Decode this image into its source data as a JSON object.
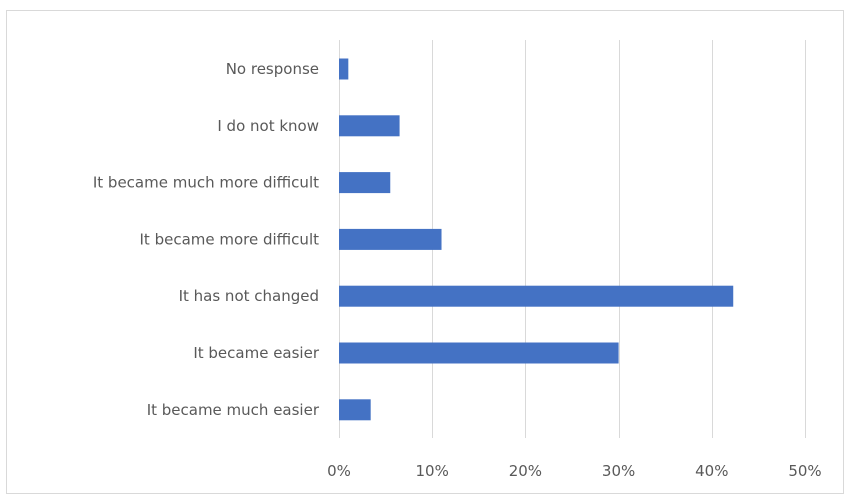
{
  "chart_data": {
    "type": "bar",
    "orientation": "horizontal",
    "title": "",
    "xlabel": "",
    "ylabel": "",
    "categories": [
      "No response",
      "I do not know",
      "It became much more difficult",
      "It became more difficult",
      "It has not changed",
      "It became easier",
      "It became much easier"
    ],
    "values": [
      1,
      6.5,
      5.5,
      11,
      42.3,
      30,
      3.4
    ],
    "xlim": [
      0,
      50
    ],
    "x_ticks": [
      0,
      10,
      20,
      30,
      40,
      50
    ],
    "tick_labels": [
      "0%",
      "10%",
      "20%",
      "30%",
      "40%",
      "50%"
    ],
    "grid": true,
    "legend": "none",
    "colors": {
      "bar": "#4472c4",
      "grid": "#d9d9d9",
      "text": "#595959"
    }
  }
}
